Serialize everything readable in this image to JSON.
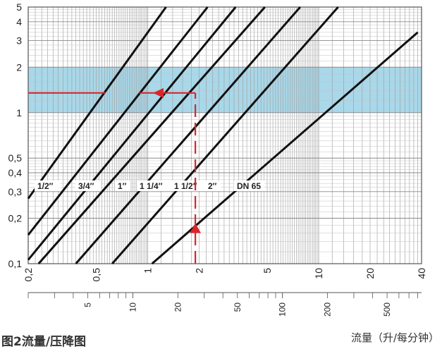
{
  "chart_data": {
    "type": "line",
    "title": "图2流量/压降图",
    "xlabel": "流量（升/每分钟）",
    "ylabel": "",
    "x_scale": "log",
    "y_scale": "log",
    "xlim": [
      0.2,
      40
    ],
    "ylim": [
      0.1,
      5
    ],
    "x_ticks_top": [
      "0,2",
      "0,5",
      "1",
      "2",
      "5",
      "10",
      "20",
      "40"
    ],
    "x_ticks_bottom": [
      "5",
      "10",
      "20",
      "50",
      "100",
      "200",
      "500"
    ],
    "y_ticks": [
      "0,1",
      "0,2",
      "0,3",
      "0,4",
      "0,5",
      "1",
      "2",
      "3",
      "4",
      "5"
    ],
    "highlight_band": [
      1,
      2
    ],
    "highlight_color": "#a8d8ea",
    "series": [
      {
        "name": "1/2″",
        "x": [
          0.2,
          1.28
        ],
        "y": [
          0.27,
          5
        ]
      },
      {
        "name": "3/4″",
        "x": [
          0.2,
          2.24
        ],
        "y": [
          0.155,
          5
        ]
      },
      {
        "name": "1″",
        "x": [
          0.2,
          3.27
        ],
        "y": [
          0.106,
          5
        ]
      },
      {
        "name": "1 1/4″",
        "x": [
          0.23,
          4.85
        ],
        "y": [
          0.1,
          5
        ]
      },
      {
        "name": "1 1/2″",
        "x": [
          0.38,
          7.8
        ],
        "y": [
          0.1,
          5
        ]
      },
      {
        "name": "2″",
        "x": [
          0.62,
          13.0
        ],
        "y": [
          0.1,
          5
        ]
      },
      {
        "name": "DN 65",
        "x": [
          1.06,
          38.0
        ],
        "y": [
          0.1,
          3.4
        ]
      }
    ],
    "example": {
      "flow": 1.9,
      "pressure_drop": 1.35,
      "color": "#d9262b"
    }
  }
}
